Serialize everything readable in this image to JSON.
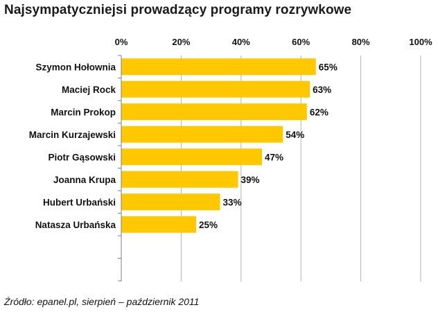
{
  "chart_data": {
    "type": "bar",
    "orientation": "horizontal",
    "title": "Najsympatyczniejsi prowadzący programy rozrywkowe",
    "categories": [
      "Szymon Hołownia",
      "Maciej Rock",
      "Marcin Prokop",
      "Marcin Kurzajewski",
      "Piotr Gąsowski",
      "Joanna Krupa",
      "Hubert Urbański",
      "Natasza Urbańska"
    ],
    "values": [
      65,
      63,
      62,
      54,
      47,
      39,
      33,
      25
    ],
    "value_labels": [
      "65%",
      "63%",
      "62%",
      "54%",
      "47%",
      "39%",
      "33%",
      "25%"
    ],
    "xlim": [
      0,
      100
    ],
    "xticks": [
      0,
      20,
      40,
      60,
      80,
      100
    ],
    "xtick_labels": [
      "0%",
      "20%",
      "40%",
      "60%",
      "80%",
      "100%"
    ],
    "axis_position": "top",
    "gridlines": true,
    "xlabel": "",
    "ylabel": "",
    "bar_color": "#FFC800",
    "source": "Źródło: epanel.pl, sierpień – październik 2011"
  }
}
